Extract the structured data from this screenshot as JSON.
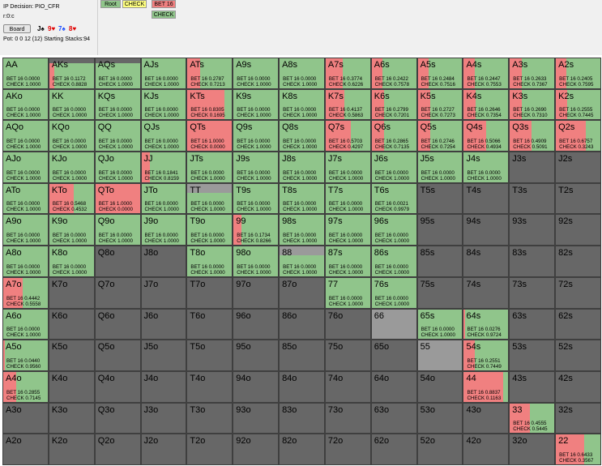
{
  "info": {
    "decision": "IP Decision:  PIO_CFR",
    "street": "r:0:c",
    "board_label": "Board",
    "pot": "Pot: 0 0 12 (12) Starting Stacks:94"
  },
  "board_cards": [
    {
      "rank": "J",
      "suit": "♠",
      "color": "#000000"
    },
    {
      "rank": "9",
      "suit": "♥",
      "color": "#e00000"
    },
    {
      "rank": "7",
      "suit": "♠",
      "color": "#1a4cff"
    },
    {
      "rank": "8",
      "suit": "♥",
      "color": "#e00000"
    }
  ],
  "tree": {
    "root": "Root",
    "check": "CHECK",
    "bet": "BET 16",
    "check2": "CHECK"
  },
  "colors": {
    "bet": "#f08080",
    "check": "#90c58b",
    "grid_bg": "#676767",
    "border": "#3f3f3f",
    "check_button": "#ffff80"
  },
  "labels": {
    "bet": "BET 16",
    "check": "CHECK"
  },
  "grid": {
    "ranks": [
      "A",
      "K",
      "Q",
      "J",
      "T",
      "9",
      "8",
      "7",
      "6",
      "5",
      "4",
      "3",
      "2"
    ],
    "hands": [
      [
        "AA",
        "AKs",
        "AQs",
        "AJs",
        "ATs",
        "A9s",
        "A8s",
        "A7s",
        "A6s",
        "A5s",
        "A4s",
        "A3s",
        "A2s"
      ],
      [
        "AKo",
        "KK",
        "KQs",
        "KJs",
        "KTs",
        "K9s",
        "K8s",
        "K7s",
        "K6s",
        "K5s",
        "K4s",
        "K3s",
        "K2s"
      ],
      [
        "AQo",
        "KQo",
        "QQ",
        "QJs",
        "QTs",
        "Q9s",
        "Q8s",
        "Q7s",
        "Q6s",
        "Q5s",
        "Q4s",
        "Q3s",
        "Q2s"
      ],
      [
        "AJo",
        "KJo",
        "QJo",
        "JJ",
        "JTs",
        "J9s",
        "J8s",
        "J7s",
        "J6s",
        "J5s",
        "J4s",
        "J3s",
        "J2s"
      ],
      [
        "ATo",
        "KTo",
        "QTo",
        "JTo",
        "TT",
        "T9s",
        "T8s",
        "T7s",
        "T6s",
        "T5s",
        "T4s",
        "T3s",
        "T2s"
      ],
      [
        "A9o",
        "K9o",
        "Q9o",
        "J9o",
        "T9o",
        "99",
        "98s",
        "97s",
        "96s",
        "95s",
        "94s",
        "93s",
        "92s"
      ],
      [
        "A8o",
        "K8o",
        "Q8o",
        "J8o",
        "T8o",
        "98o",
        "88",
        "87s",
        "86s",
        "85s",
        "84s",
        "83s",
        "82s"
      ],
      [
        "A7o",
        "K7o",
        "Q7o",
        "J7o",
        "T7o",
        "97o",
        "87o",
        "77",
        "76s",
        "75s",
        "74s",
        "73s",
        "72s"
      ],
      [
        "A6o",
        "K6o",
        "Q6o",
        "J6o",
        "T6o",
        "96o",
        "86o",
        "76o",
        "66",
        "65s",
        "64s",
        "63s",
        "62s"
      ],
      [
        "A5o",
        "K5o",
        "Q5o",
        "J5o",
        "T5o",
        "95o",
        "85o",
        "75o",
        "65o",
        "55",
        "54s",
        "53s",
        "52s"
      ],
      [
        "A4o",
        "K4o",
        "Q4o",
        "J4o",
        "T4o",
        "94o",
        "84o",
        "74o",
        "64o",
        "54o",
        "44",
        "43s",
        "42s"
      ],
      [
        "A3o",
        "K3o",
        "Q3o",
        "J3o",
        "T3o",
        "93o",
        "83o",
        "73o",
        "63o",
        "53o",
        "43o",
        "33",
        "32s"
      ],
      [
        "A2o",
        "K2o",
        "Q2o",
        "J2o",
        "T2o",
        "92o",
        "82o",
        "72o",
        "62o",
        "52o",
        "42o",
        "32o",
        "22"
      ]
    ],
    "freqs": {
      "AA": [
        0.0,
        1.0,
        1.0
      ],
      "AKs": [
        0.1172,
        0.8828,
        0.85
      ],
      "AQs": [
        0.0,
        1.0,
        0.85
      ],
      "AJs": [
        0.0,
        1.0,
        1.0
      ],
      "ATs": [
        0.2787,
        0.7213,
        1.0
      ],
      "A9s": [
        0.0,
        1.0,
        1.0
      ],
      "A8s": [
        0.0,
        1.0,
        1.0
      ],
      "A7s": [
        0.3774,
        0.6226,
        1.0
      ],
      "A6s": [
        0.2422,
        0.7578,
        1.0
      ],
      "A5s": [
        0.2484,
        0.7516,
        1.0
      ],
      "A4s": [
        0.2447,
        0.7553,
        1.0
      ],
      "A3s": [
        0.2633,
        0.7367,
        1.0
      ],
      "A2s": [
        0.2405,
        0.7595,
        1.0
      ],
      "AKo": [
        0.0,
        1.0,
        1.0
      ],
      "KK": [
        0.0,
        1.0,
        1.0
      ],
      "KQs": [
        0.0,
        1.0,
        1.0
      ],
      "KJs": [
        0.0,
        1.0,
        1.0
      ],
      "KTs": [
        0.8305,
        0.1695,
        1.0
      ],
      "K9s": [
        0.0,
        1.0,
        1.0
      ],
      "K8s": [
        0.0,
        1.0,
        1.0
      ],
      "K7s": [
        0.4137,
        0.5863,
        1.0
      ],
      "K6s": [
        0.2799,
        0.7201,
        1.0
      ],
      "K5s": [
        0.2727,
        0.7273,
        1.0
      ],
      "K4s": [
        0.2646,
        0.7354,
        1.0
      ],
      "K3s": [
        0.269,
        0.731,
        1.0
      ],
      "K2s": [
        0.2555,
        0.7445,
        1.0
      ],
      "AQo": [
        0.0,
        1.0,
        1.0
      ],
      "KQo": [
        0.0,
        1.0,
        1.0
      ],
      "QQ": [
        0.0,
        1.0,
        1.0
      ],
      "QJs": [
        0.0,
        1.0,
        1.0
      ],
      "QTs": [
        1.0,
        0.0,
        1.0
      ],
      "Q9s": [
        0.0,
        1.0,
        1.0
      ],
      "Q8s": [
        0.0,
        1.0,
        1.0
      ],
      "Q7s": [
        0.5703,
        0.4297,
        1.0
      ],
      "Q6s": [
        0.2865,
        0.7135,
        1.0
      ],
      "Q5s": [
        0.2746,
        0.7254,
        1.0
      ],
      "Q4s": [
        0.5066,
        0.4934,
        1.0
      ],
      "Q3s": [
        0.4909,
        0.5091,
        1.0
      ],
      "Q2s": [
        0.6757,
        0.3243,
        1.0
      ],
      "AJo": [
        0.0,
        1.0,
        1.0
      ],
      "KJo": [
        0.0,
        1.0,
        1.0
      ],
      "QJo": [
        0.0,
        1.0,
        1.0
      ],
      "JJ": [
        0.1841,
        0.8159,
        1.0
      ],
      "JTs": [
        0.0,
        1.0,
        1.0
      ],
      "J9s": [
        0.0,
        1.0,
        1.0
      ],
      "J8s": [
        0.0,
        1.0,
        1.0
      ],
      "J7s": [
        0.0,
        1.0,
        1.0
      ],
      "J6s": [
        0.0,
        1.0,
        1.0
      ],
      "J5s": [
        0.0,
        1.0,
        1.0
      ],
      "J4s": [
        0.0,
        1.0,
        1.0
      ],
      "J3s": null,
      "J2s": null,
      "ATo": [
        0.0,
        1.0,
        1.0
      ],
      "KTo": [
        0.5468,
        0.4532,
        1.0
      ],
      "QTo": [
        1.0,
        0.0,
        1.0
      ],
      "JTo": [
        0.0,
        1.0,
        1.0
      ],
      "TT": [
        0.0,
        1.0,
        0.7
      ],
      "T9s": [
        0.0,
        1.0,
        1.0
      ],
      "T8s": [
        0.0,
        1.0,
        1.0
      ],
      "T7s": [
        0.0,
        1.0,
        1.0
      ],
      "T6s": [
        0.0021,
        0.9979,
        1.0
      ],
      "T5s": null,
      "T4s": null,
      "T3s": null,
      "T2s": null,
      "A9o": [
        0.0,
        1.0,
        1.0
      ],
      "K9o": [
        0.0,
        1.0,
        1.0
      ],
      "Q9o": [
        0.0,
        1.0,
        1.0
      ],
      "J9o": [
        0.0,
        1.0,
        1.0
      ],
      "T9o": [
        0.0,
        1.0,
        1.0
      ],
      "99": [
        0.1734,
        0.8266,
        1.0
      ],
      "98s": [
        0.0,
        1.0,
        1.0
      ],
      "97s": [
        0.0,
        1.0,
        1.0
      ],
      "96s": [
        0.0,
        1.0,
        1.0
      ],
      "95s": null,
      "94s": null,
      "93s": null,
      "92s": null,
      "A8o": [
        0.0,
        1.0,
        1.0
      ],
      "K8o": [
        0.0,
        1.0,
        1.0
      ],
      "Q8o": null,
      "J8o": null,
      "T8o": [
        0.0,
        1.0,
        1.0
      ],
      "98o": [
        0.0,
        1.0,
        1.0
      ],
      "88": [
        0.0,
        1.0,
        0.7
      ],
      "87s": [
        0.0,
        1.0,
        1.0
      ],
      "86s": [
        0.0,
        1.0,
        1.0
      ],
      "85s": null,
      "84s": null,
      "83s": null,
      "82s": null,
      "A7o": [
        0.4442,
        0.5558,
        1.0
      ],
      "K7o": null,
      "Q7o": null,
      "J7o": null,
      "T7o": null,
      "97o": null,
      "87o": null,
      "77": [
        0.0,
        1.0,
        1.0
      ],
      "76s": [
        0.0,
        1.0,
        1.0
      ],
      "75s": null,
      "74s": null,
      "73s": null,
      "72s": null,
      "A6o": [
        0.0,
        1.0,
        1.0
      ],
      "K6o": null,
      "Q6o": null,
      "J6o": null,
      "T6o": null,
      "96o": null,
      "86o": null,
      "76o": null,
      "66": null,
      "65s": [
        0.0,
        1.0,
        1.0
      ],
      "64s": [
        0.0276,
        0.9724,
        1.0
      ],
      "63s": null,
      "62s": null,
      "A5o": [
        0.044,
        0.956,
        1.0
      ],
      "K5o": null,
      "Q5o": null,
      "J5o": null,
      "T5o": null,
      "95o": null,
      "85o": null,
      "75o": null,
      "65o": null,
      "55": null,
      "54s": [
        0.2551,
        0.7449,
        1.0
      ],
      "53s": null,
      "52s": null,
      "A4o": [
        0.2855,
        0.7145,
        1.0
      ],
      "K4o": null,
      "Q4o": null,
      "J4o": null,
      "T4o": null,
      "94o": null,
      "84o": null,
      "74o": null,
      "64o": null,
      "54o": null,
      "44": [
        0.8837,
        0.1163,
        1.0
      ],
      "43s": null,
      "42s": null,
      "A3o": null,
      "K3o": null,
      "Q3o": null,
      "J3o": null,
      "T3o": null,
      "93o": null,
      "83o": null,
      "73o": null,
      "63o": null,
      "53o": null,
      "43o": null,
      "33": [
        0.4555,
        0.5445,
        1.0
      ],
      "32s": null,
      "A2o": null,
      "K2o": null,
      "Q2o": null,
      "J2o": null,
      "T2o": null,
      "92o": null,
      "82o": null,
      "72o": null,
      "62o": null,
      "52o": null,
      "42o": null,
      "32o": null,
      "22": [
        0.6433,
        0.3567,
        1.0
      ]
    },
    "grey_pairs": [
      "66",
      "55",
      "88",
      "TT",
      "33",
      "AA"
    ]
  }
}
